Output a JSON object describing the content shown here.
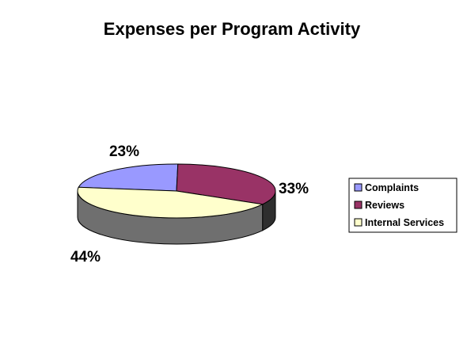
{
  "chart_data": {
    "type": "pie",
    "title": "Expenses per Program Activity",
    "slices": [
      {
        "label": "Complaints",
        "value": 23,
        "display": "23%",
        "color": "#9999ff"
      },
      {
        "label": "Reviews",
        "value": 33,
        "display": "33%",
        "color": "#993366"
      },
      {
        "label": "Internal Services",
        "value": 44,
        "display": "44%",
        "color": "#ffffcc"
      }
    ],
    "legend_position": "right",
    "style": "3d"
  }
}
